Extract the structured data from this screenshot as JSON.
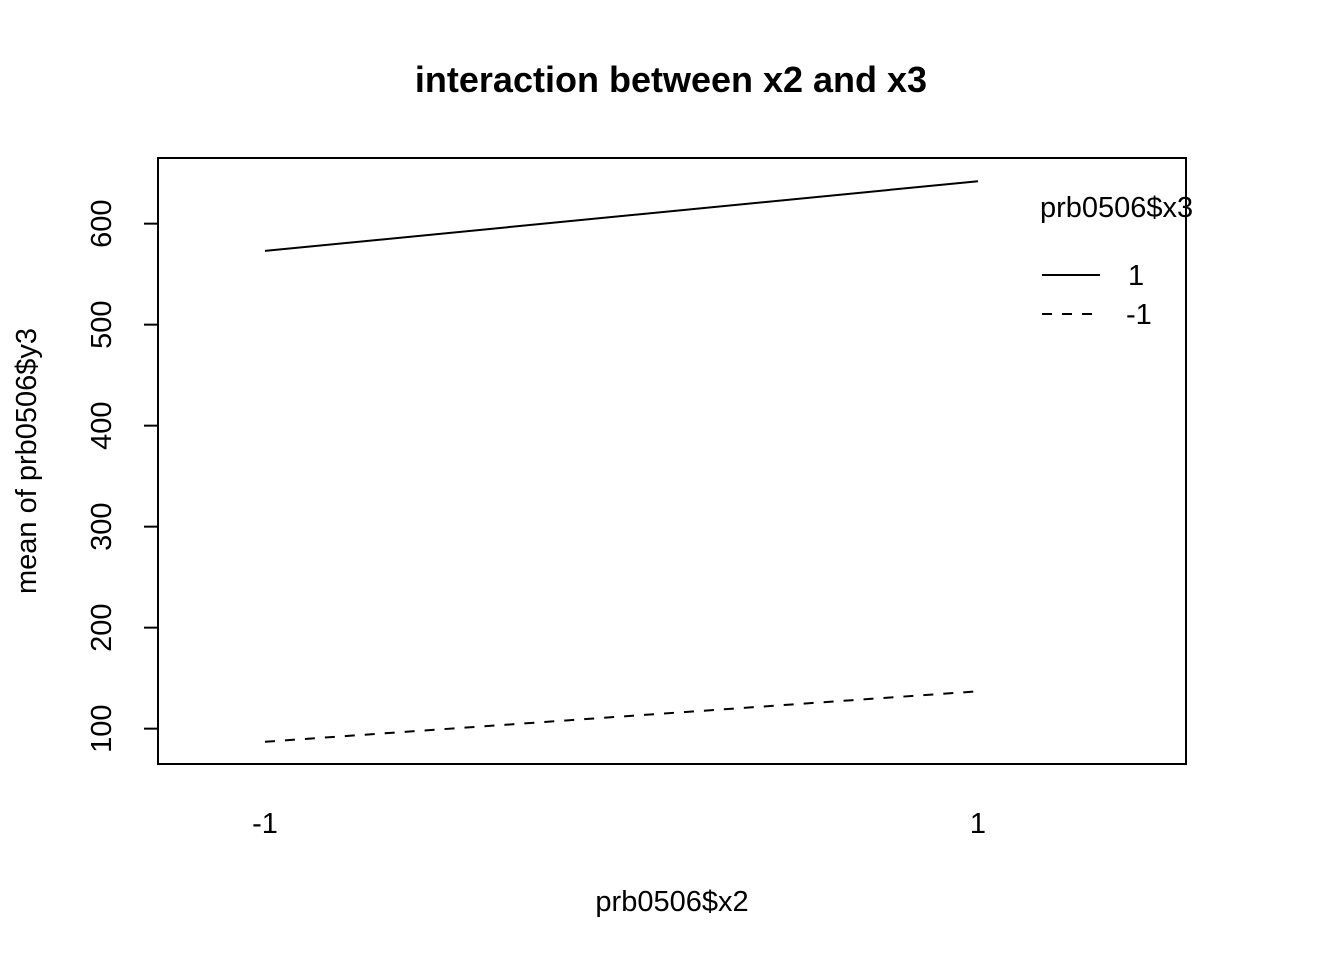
{
  "chart_data": {
    "type": "line",
    "title": "interaction between x2 and x3",
    "xlabel": "prb0506$x2",
    "ylabel": "mean of  prb0506$y3",
    "categories": [
      "-1",
      "1"
    ],
    "yticks": [
      "100",
      "200",
      "300",
      "400",
      "500",
      "600"
    ],
    "ylim": [
      65,
      665
    ],
    "legend": {
      "title": "prb0506$x3",
      "position": "top-right",
      "entries": [
        {
          "label": "1",
          "style": "solid"
        },
        {
          "label": "-1",
          "style": "dashed"
        }
      ]
    },
    "series": [
      {
        "name": "1",
        "style": "solid",
        "values": [
          573,
          642
        ]
      },
      {
        "name": "-1",
        "style": "dashed",
        "values": [
          87,
          137
        ]
      }
    ],
    "grid": false
  }
}
